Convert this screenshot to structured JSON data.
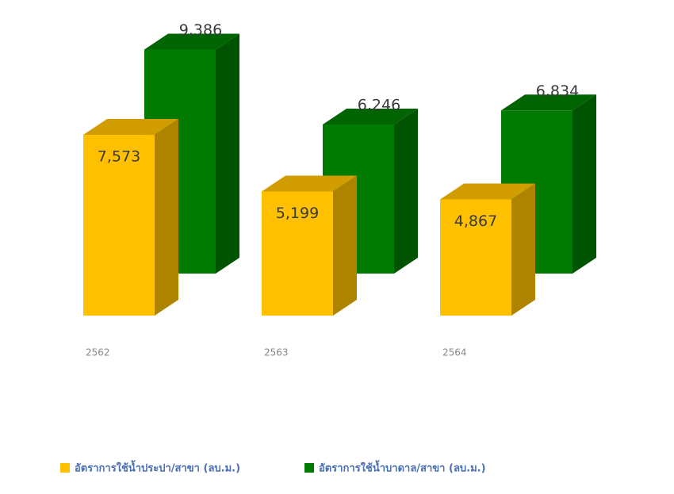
{
  "chart_data": {
    "type": "bar3d",
    "categories": [
      "2562",
      "2563",
      "2564"
    ],
    "series": [
      {
        "name": "อัตราการใช้น้ำประปา/สาขา (ลบ.ม.)",
        "color": "#ffc000",
        "values": [
          7573,
          5199,
          4867
        ],
        "value_labels": [
          "7,573",
          "5,199",
          "4,867"
        ]
      },
      {
        "name": "อัตราการใช้น้ำบาดาล/สาขา (ลบ.ม.)",
        "color": "#007a00",
        "values": [
          9386,
          6246,
          6834
        ],
        "value_labels": [
          "9,386",
          "6,246",
          "6,834"
        ]
      }
    ],
    "legend": "bottom"
  }
}
